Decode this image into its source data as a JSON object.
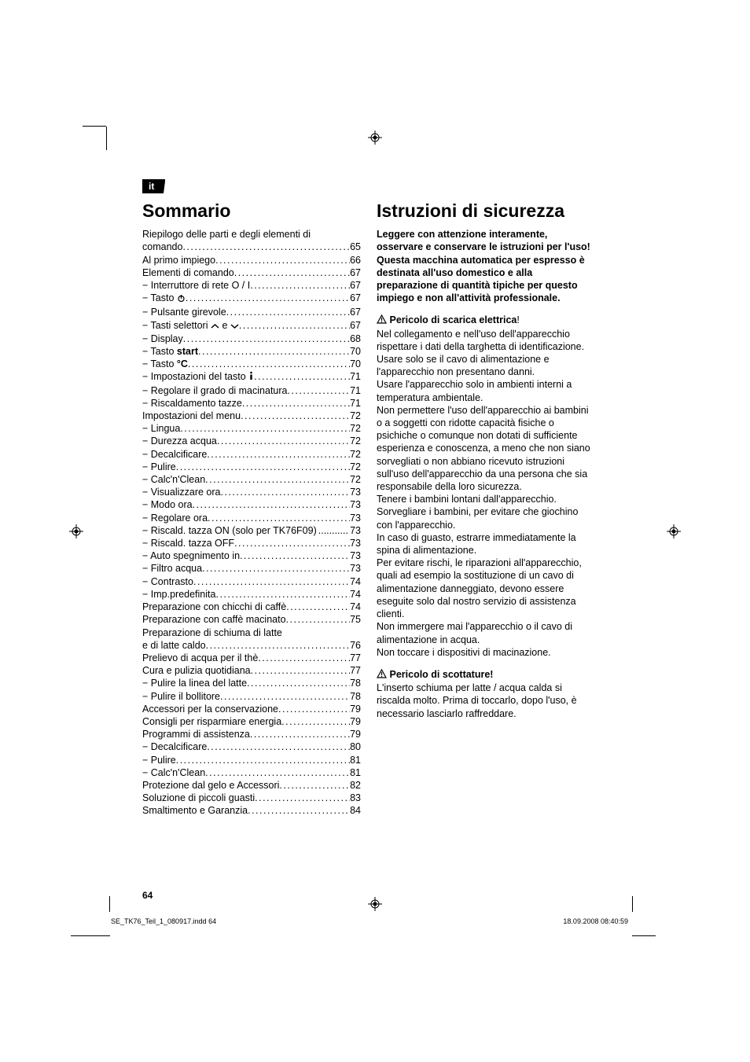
{
  "lang_tag": "it",
  "page_number": "64",
  "footer_left": "SE_TK76_Teil_1_080917.indd   64",
  "footer_right": "18.09.2008   08:40:59",
  "left_col": {
    "title": "Sommario",
    "toc": [
      {
        "label": "Riepilogo delle parti e degli elementi di",
        "page": "",
        "nodots": true
      },
      {
        "label": "comando",
        "page": "65"
      },
      {
        "label": "Al primo impiego",
        "page": "66"
      },
      {
        "label": "Elementi di comando",
        "page": "67"
      },
      {
        "label": "− Interruttore di rete O / I",
        "page": "67"
      },
      {
        "label": "− Tasto ",
        "icon": "power",
        "page": "67"
      },
      {
        "label": "− Pulsante girevole",
        "page": "67"
      },
      {
        "label": "− Tasti selettori ",
        "icon": "updown",
        "after": " e ",
        "page": "67"
      },
      {
        "label": "− Display",
        "page": "68"
      },
      {
        "label": "− Tasto start",
        "bold_part": "start",
        "prefix": "− Tasto ",
        "page": "70"
      },
      {
        "label": "− Tasto °C",
        "bold_part": "°C",
        "prefix": "− Tasto ",
        "page": "70"
      },
      {
        "label": "− Impostazioni del tasto ",
        "icon": "info",
        "page": "71"
      },
      {
        "label": "− Regolare il grado di macinatura",
        "page": "71"
      },
      {
        "label": "− Riscaldamento tazze",
        "page": "71"
      },
      {
        "label": "Impostazioni del menu",
        "page": "72"
      },
      {
        "label": "− Lingua",
        "page": "72"
      },
      {
        "label": "− Durezza acqua",
        "page": "72"
      },
      {
        "label": "− Decalcificare",
        "page": "72"
      },
      {
        "label": "− Pulire",
        "page": "72"
      },
      {
        "label": "− Calc'n'Clean",
        "page": "72"
      },
      {
        "label": "− Visualizzare ora",
        "page": "73"
      },
      {
        "label": "− Modo ora",
        "page": "73"
      },
      {
        "label": "− Regolare ora",
        "page": "73"
      },
      {
        "label": "− Riscald. tazza ON (solo per TK76F09)",
        "page": "73",
        "tight": true
      },
      {
        "label": "− Riscald. tazza OFF",
        "page": "73"
      },
      {
        "label": "− Auto spegnimento in",
        "page": "73"
      },
      {
        "label": "− Filtro acqua",
        "page": "73"
      },
      {
        "label": "− Contrasto",
        "page": "74"
      },
      {
        "label": "− Imp.predefinita",
        "page": "74"
      },
      {
        "label": "Preparazione con chicchi di caffè",
        "page": "74"
      },
      {
        "label": "Preparazione con caffè macinato",
        "page": "75"
      },
      {
        "label": "Preparazione di schiuma di latte",
        "page": "",
        "nodots": true
      },
      {
        "label": "e di latte caldo",
        "page": "76"
      },
      {
        "label": "Prelievo di acqua per il thè",
        "page": "77"
      },
      {
        "label": "Cura e pulizia quotidiana",
        "page": "77"
      },
      {
        "label": "− Pulire la linea del latte",
        "page": "78"
      },
      {
        "label": "− Pulire il bollitore",
        "page": "78"
      },
      {
        "label": "Accessori per la conservazione",
        "page": "79"
      },
      {
        "label": "Consigli per risparmiare energia",
        "page": "79"
      },
      {
        "label": "Programmi di assistenza",
        "page": "79"
      },
      {
        "label": "− Decalcificare",
        "page": "80"
      },
      {
        "label": "− Pulire",
        "page": "81"
      },
      {
        "label": "− Calc'n'Clean",
        "page": "81"
      },
      {
        "label": "Protezione dal gelo e Accessori",
        "page": "82"
      },
      {
        "label": "Soluzione di piccoli guasti",
        "page": "83"
      },
      {
        "label": "Smaltimento e Garanzia",
        "page": "84"
      }
    ]
  },
  "right_col": {
    "title": "Istruzioni di sicurezza",
    "intro_bold": "Leggere con attenzione interamente, osservare e conservare le istruzioni per l'uso!\nQuesta macchina automatica per espresso è destinata all'uso domestico e alla preparazione di quantità tipiche per questo impiego e non all'attività professionale.",
    "h1": "Pericolo di scarica elettrica",
    "h1_bang": "!",
    "body1": "Nel collegamento e nell'uso dell'apparecchio rispettare i dati della targhetta di identificazione.\nUsare solo se il cavo di alimentazione e l'apparecchio non presentano danni.\nUsare l'apparecchio solo in ambienti interni a temperatura ambientale.\nNon permettere l'uso dell'apparecchio ai bambini o a soggetti con ridotte capacità fisiche o psichiche o comunque non dotati di sufficiente esperienza e conoscenza, a meno che non siano sorvegliati o non abbiano ricevuto istruzioni sull'uso dell'apparecchio da una persona che sia responsabile della loro sicurezza.\nTenere i bambini lontani dall'apparecchio. Sorvegliare i bambini, per evitare che giochino con l'apparecchio.\nIn caso di guasto, estrarre immediatamente la spina di alimentazione.\nPer evitare rischi, le riparazioni all'apparecchio, quali ad esempio la sostituzione di un cavo di alimentazione danneggiato, devono essere eseguite solo dal nostro servizio di assistenza clienti.\nNon immergere mai l'apparecchio o il cavo di alimentazione in acqua.\nNon toccare i dispositivi di macinazione.",
    "h2": "Pericolo di scottature!",
    "body2": "L'inserto schiuma per latte / acqua calda si riscalda molto. Prima di toccarlo, dopo l'uso, è necessario lasciarlo raffreddare."
  }
}
